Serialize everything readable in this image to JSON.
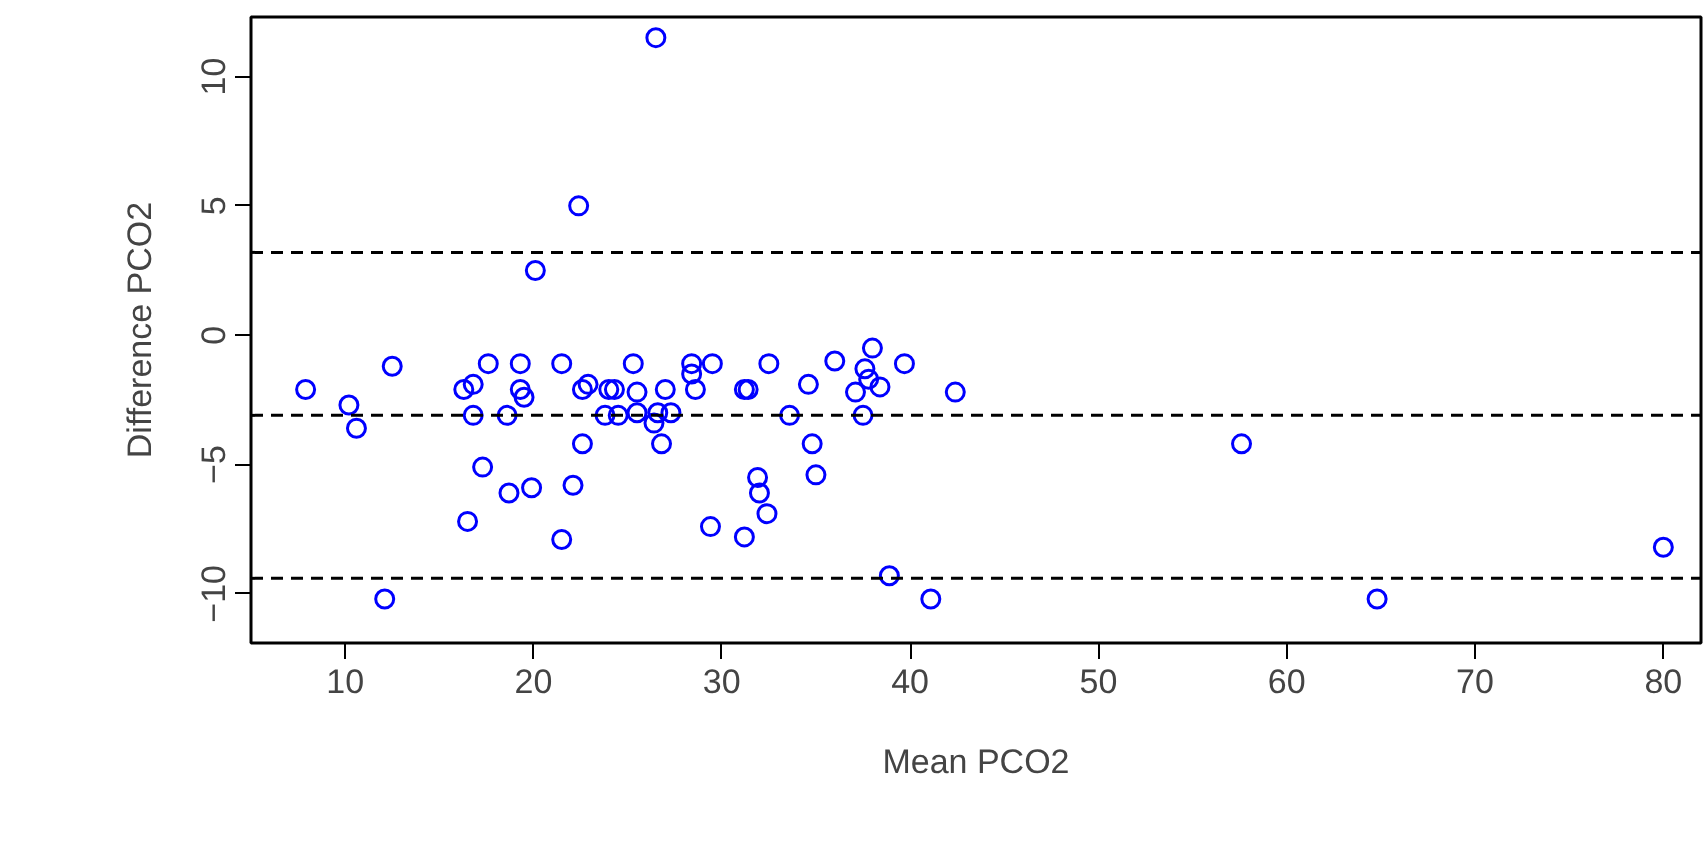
{
  "chart_data": {
    "type": "scatter",
    "xlabel": "Mean PCO2",
    "ylabel": "Difference PCO2",
    "marker": "circle",
    "grid": false,
    "xlim": [
      5,
      82
    ],
    "ylim": [
      -11.9,
      12.3
    ],
    "xticks": [
      10,
      20,
      30,
      40,
      50,
      60,
      70,
      80
    ],
    "yticks": [
      -10,
      -5,
      0,
      5,
      10
    ],
    "ref_lines": [
      {
        "axis": "y",
        "value": 3.2,
        "line_style": "dashed",
        "color": "#000000"
      },
      {
        "axis": "y",
        "value": -3.1,
        "line_style": "dashed",
        "color": "#000000"
      },
      {
        "axis": "y",
        "value": -9.4,
        "line_style": "dashed",
        "color": "#000000"
      }
    ],
    "series": [
      {
        "color": "#0000ff",
        "x": [
          7.9,
          10.2,
          10.6,
          12.5,
          12.1,
          16.3,
          16.8,
          17.6,
          19.3,
          19.3,
          19.5,
          16.8,
          18.6,
          17.3,
          18.7,
          19.9,
          16.5,
          21.5,
          22.6,
          22.9,
          24.0,
          24.3,
          25.5,
          25.3,
          27.0,
          26.6,
          26.4,
          23.8,
          24.5,
          25.5,
          27.3,
          26.8,
          22.6,
          22.1,
          21.5,
          28.4,
          28.4,
          28.6,
          29.5,
          31.2,
          31.4,
          32.5,
          33.6,
          29.4,
          31.2,
          31.9,
          32.0,
          32.4,
          26.5,
          22.4,
          20.1,
          34.6,
          36.0,
          38.0,
          37.6,
          37.8,
          37.1,
          38.4,
          39.7,
          42.4,
          37.5,
          34.8,
          35.0,
          38.9,
          41.1,
          57.6,
          64.8,
          80.0
        ],
        "values": [
          -2.1,
          -2.7,
          -3.6,
          -1.2,
          -10.2,
          -2.1,
          -1.9,
          -1.1,
          -1.1,
          -2.1,
          -2.4,
          -3.1,
          -3.1,
          -5.1,
          -6.1,
          -5.9,
          -7.2,
          -1.1,
          -2.1,
          -1.9,
          -2.1,
          -2.1,
          -2.2,
          -1.1,
          -2.1,
          -3.0,
          -3.4,
          -3.1,
          -3.1,
          -3.0,
          -3.0,
          -4.2,
          -4.2,
          -5.8,
          -7.9,
          -1.1,
          -1.5,
          -2.1,
          -1.1,
          -2.1,
          -2.1,
          -1.1,
          -3.1,
          -7.4,
          -7.8,
          -5.5,
          -6.1,
          -6.9,
          11.5,
          5.0,
          2.5,
          -1.9,
          -1.0,
          -0.5,
          -1.3,
          -1.7,
          -2.2,
          -2.0,
          -1.1,
          -2.2,
          -3.1,
          -4.2,
          -5.4,
          -9.3,
          -10.2,
          -4.2,
          -10.2,
          -8.2
        ]
      }
    ]
  }
}
